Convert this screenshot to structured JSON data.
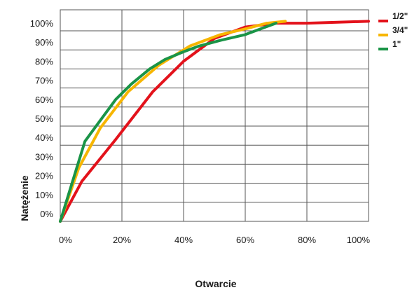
{
  "chart_data": {
    "type": "line",
    "xlabel": "Otwarcie",
    "ylabel": "Natężenie",
    "x_ticks": [
      "0%",
      "20%",
      "40%",
      "60%",
      "80%",
      "100%"
    ],
    "y_ticks": [
      "0%",
      "10%",
      "20%",
      "30%",
      "40%",
      "50%",
      "60%",
      "70%",
      "80%",
      "90%",
      "100%"
    ],
    "xlim": [
      0,
      100
    ],
    "ylim": [
      0,
      100
    ],
    "grid": true,
    "legend_position": "top-right",
    "series": [
      {
        "name": "1/2\"",
        "color": "#e3121b",
        "x": [
          0,
          7,
          18,
          30,
          40,
          50,
          60,
          70,
          80,
          100
        ],
        "y": [
          0,
          21,
          43,
          68,
          84,
          96,
          102,
          104,
          104,
          105
        ]
      },
      {
        "name": "3/4\"",
        "color": "#f7b600",
        "x": [
          0,
          6,
          13,
          22,
          32,
          42,
          52,
          60,
          67,
          73
        ],
        "y": [
          0,
          28,
          49,
          68,
          82,
          92,
          98,
          101,
          104,
          105
        ]
      },
      {
        "name": "1\"",
        "color": "#1a9447",
        "x": [
          0,
          8,
          13,
          18,
          23,
          29,
          34,
          40,
          45,
          52,
          60,
          70
        ],
        "y": [
          0,
          42,
          53,
          64,
          72,
          80,
          85,
          89,
          92,
          95,
          98,
          104
        ]
      }
    ]
  }
}
